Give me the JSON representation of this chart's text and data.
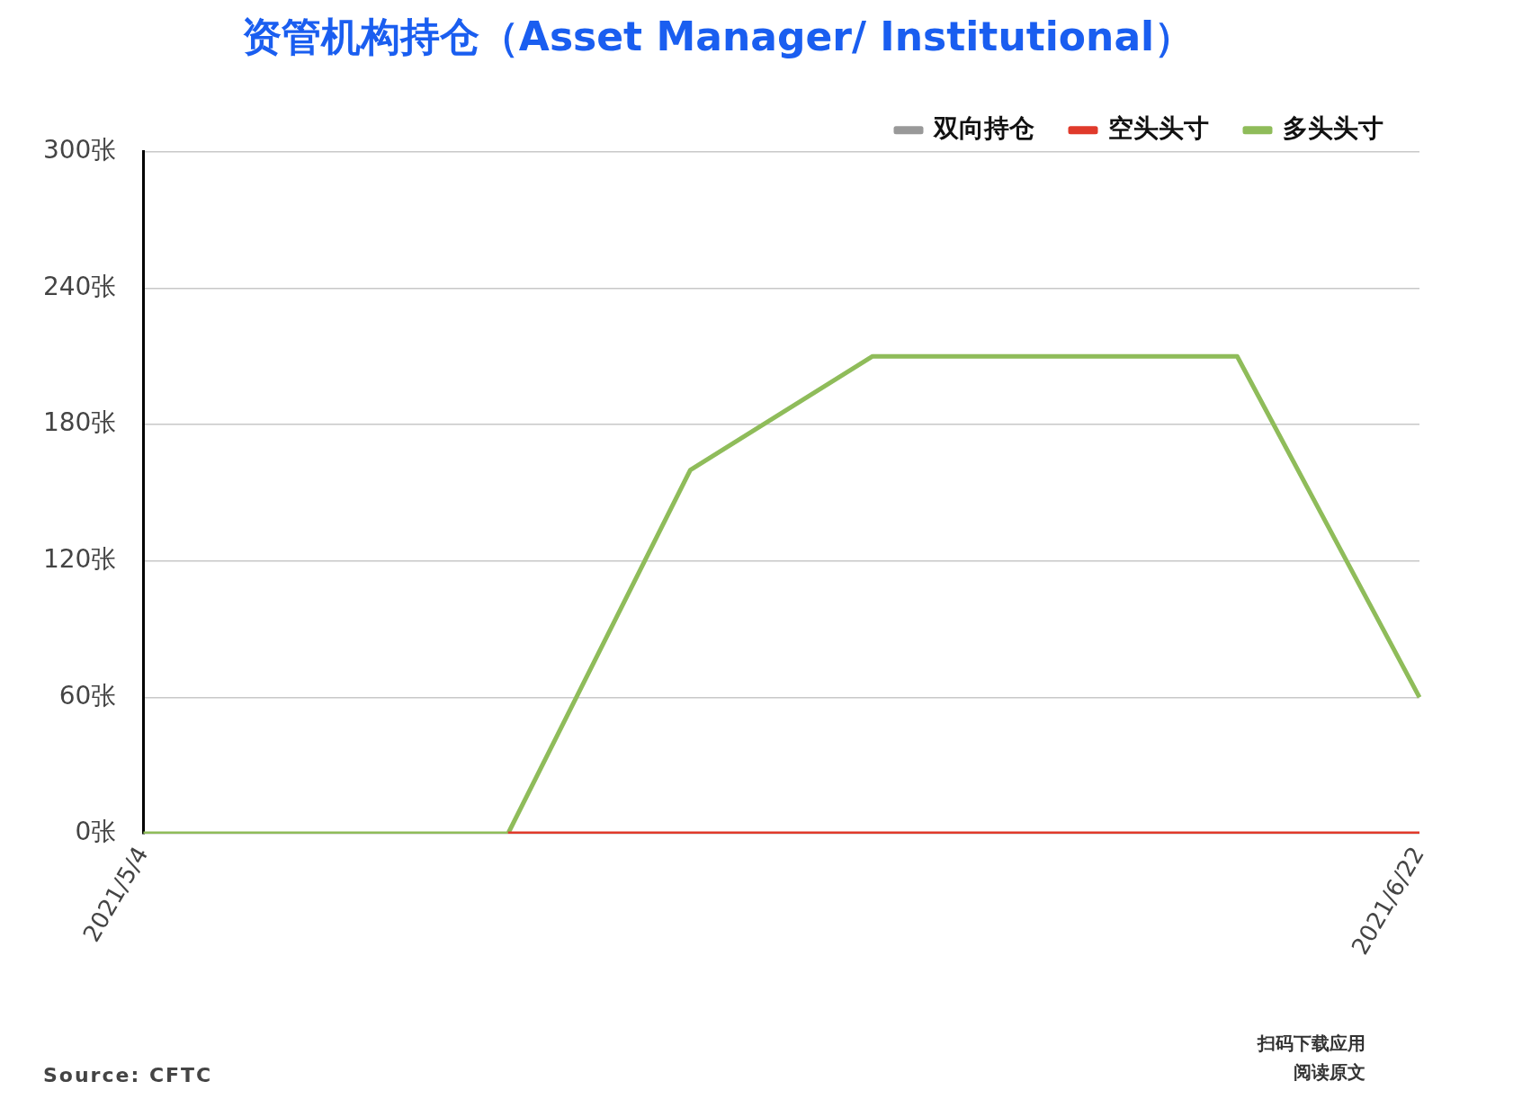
{
  "chart_data": {
    "type": "line",
    "title": "资管机构持仓（Asset Manager/ Institutional）",
    "categories": [
      "2021/5/4",
      null,
      null,
      null,
      null,
      null,
      null,
      "2021/6/22"
    ],
    "series": [
      {
        "name": "多头头寸",
        "color": "#8fbc5a",
        "values": [
          0,
          0,
          0,
          160,
          210,
          210,
          210,
          60
        ]
      },
      {
        "name": "空头头寸",
        "color": "#e03a2b",
        "values": [
          null,
          null,
          0,
          0,
          0,
          0,
          0,
          0
        ]
      },
      {
        "name": "双向持仓",
        "color": "#999999",
        "values": [
          null,
          null,
          null,
          null,
          null,
          null,
          null,
          null
        ]
      }
    ],
    "ylim": [
      0,
      300
    ],
    "yticks": [
      {
        "value": 0,
        "label": "0张"
      },
      {
        "value": 60,
        "label": "60张"
      },
      {
        "value": 120,
        "label": "120张"
      },
      {
        "value": 180,
        "label": "180张"
      },
      {
        "value": 240,
        "label": "240张"
      },
      {
        "value": 300,
        "label": "300张"
      }
    ],
    "grid": "y",
    "legend": "top right",
    "marker": "none",
    "line_style": "solid",
    "annotations": [
      "Source: CFTC",
      "扫码下载应用",
      "阅读原文"
    ]
  }
}
